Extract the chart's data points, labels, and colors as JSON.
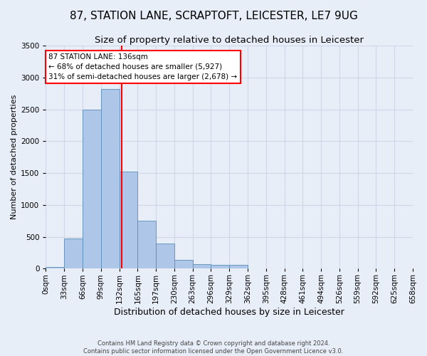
{
  "title1": "87, STATION LANE, SCRAPTOFT, LEICESTER, LE7 9UG",
  "title2": "Size of property relative to detached houses in Leicester",
  "xlabel": "Distribution of detached houses by size in Leicester",
  "ylabel": "Number of detached properties",
  "footnote": "Contains HM Land Registry data © Crown copyright and database right 2024.\nContains public sector information licensed under the Open Government Licence v3.0.",
  "bin_labels": [
    "0sqm",
    "33sqm",
    "66sqm",
    "99sqm",
    "132sqm",
    "165sqm",
    "197sqm",
    "230sqm",
    "263sqm",
    "296sqm",
    "329sqm",
    "362sqm",
    "395sqm",
    "428sqm",
    "461sqm",
    "494sqm",
    "526sqm",
    "559sqm",
    "592sqm",
    "625sqm",
    "658sqm"
  ],
  "bar_values": [
    30,
    470,
    2500,
    2820,
    1520,
    750,
    390,
    140,
    75,
    55,
    55,
    0,
    0,
    0,
    0,
    0,
    0,
    0,
    0,
    0
  ],
  "bar_color": "#aec6e8",
  "bar_edge_color": "#5b8db8",
  "grid_color": "#d0d8e8",
  "background_color": "#e8eef8",
  "vline_x": 136,
  "vline_color": "red",
  "annotation_line1": "87 STATION LANE: 136sqm",
  "annotation_line2": "← 68% of detached houses are smaller (5,927)",
  "annotation_line3": "31% of semi-detached houses are larger (2,678) →",
  "annotation_box_color": "white",
  "annotation_box_edge": "red",
  "ylim": [
    0,
    3500
  ],
  "xlim_min": 0,
  "xlim_max": 660,
  "bin_width": 33,
  "title1_fontsize": 11,
  "title2_fontsize": 9.5,
  "xlabel_fontsize": 9,
  "ylabel_fontsize": 8,
  "tick_fontsize": 7.5,
  "annotation_fontsize": 7.5
}
